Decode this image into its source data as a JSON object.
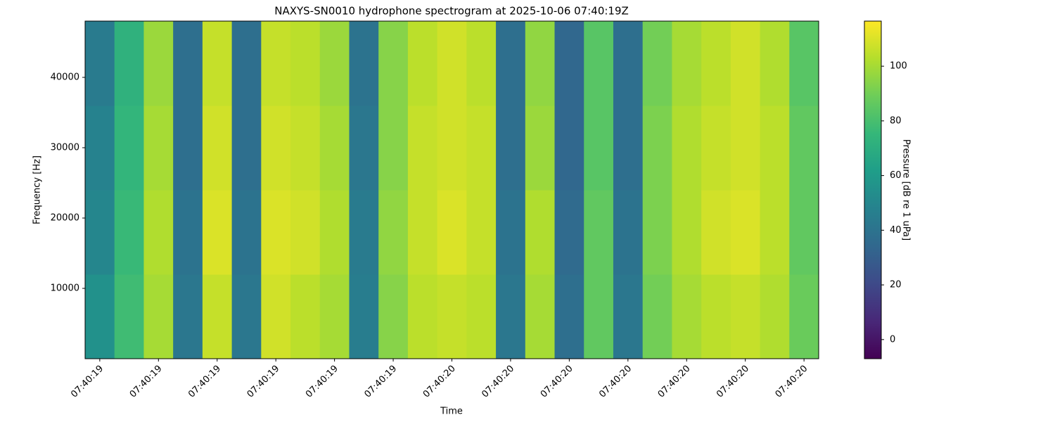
{
  "chart_data": {
    "type": "heatmap",
    "title": "NAXYS-SN0010 hydrophone spectrogram at 2025-10-06 07:40:19Z",
    "x_label": "Time",
    "y_label": "Frequency [Hz]",
    "colorbar_label": "Pressure [dB re 1 uPa]",
    "colormap": "viridis",
    "x": [
      19.4,
      19.45,
      19.5,
      19.55,
      19.6,
      19.65,
      19.7,
      19.75,
      19.8,
      19.85,
      19.9,
      19.95,
      20.0,
      20.05,
      20.1,
      20.15,
      20.2,
      20.25,
      20.3,
      20.35,
      20.4,
      20.45,
      20.5,
      20.55,
      20.6
    ],
    "y": [
      6000,
      18000,
      30000,
      42000
    ],
    "values": [
      [
        55,
        78,
        100,
        42,
        106,
        42,
        108,
        104,
        100,
        45,
        94,
        104,
        106,
        104,
        42,
        100,
        38,
        86,
        42,
        90,
        100,
        104,
        106,
        102,
        88
      ],
      [
        50,
        76,
        102,
        40,
        110,
        40,
        110,
        108,
        102,
        44,
        96,
        106,
        110,
        106,
        40,
        102,
        36,
        86,
        40,
        92,
        102,
        108,
        110,
        104,
        86
      ],
      [
        48,
        74,
        100,
        38,
        108,
        38,
        108,
        106,
        100,
        42,
        94,
        106,
        108,
        106,
        38,
        98,
        34,
        84,
        38,
        92,
        102,
        106,
        108,
        104,
        86
      ],
      [
        44,
        72,
        98,
        38,
        106,
        38,
        106,
        104,
        98,
        40,
        94,
        104,
        108,
        104,
        38,
        96,
        34,
        84,
        38,
        90,
        100,
        104,
        108,
        102,
        84
      ]
    ],
    "xlim": [
      19.375,
      20.625
    ],
    "xticks": [
      {
        "value": 19.4,
        "label": "07:40:19"
      },
      {
        "value": 19.5,
        "label": "07:40:19"
      },
      {
        "value": 19.6,
        "label": "07:40:19"
      },
      {
        "value": 19.7,
        "label": "07:40:19"
      },
      {
        "value": 19.8,
        "label": "07:40:19"
      },
      {
        "value": 19.9,
        "label": "07:40:19"
      },
      {
        "value": 20.0,
        "label": "07:40:20"
      },
      {
        "value": 20.1,
        "label": "07:40:20"
      },
      {
        "value": 20.2,
        "label": "07:40:20"
      },
      {
        "value": 20.3,
        "label": "07:40:20"
      },
      {
        "value": 20.4,
        "label": "07:40:20"
      },
      {
        "value": 20.5,
        "label": "07:40:20"
      },
      {
        "value": 20.6,
        "label": "07:40:20"
      }
    ],
    "ylim": [
      0,
      48000
    ],
    "yticks": [
      10000,
      20000,
      30000,
      40000
    ],
    "zlim": [
      -7,
      116.5
    ],
    "zticks": [
      0,
      20,
      40,
      60,
      80,
      100
    ]
  }
}
